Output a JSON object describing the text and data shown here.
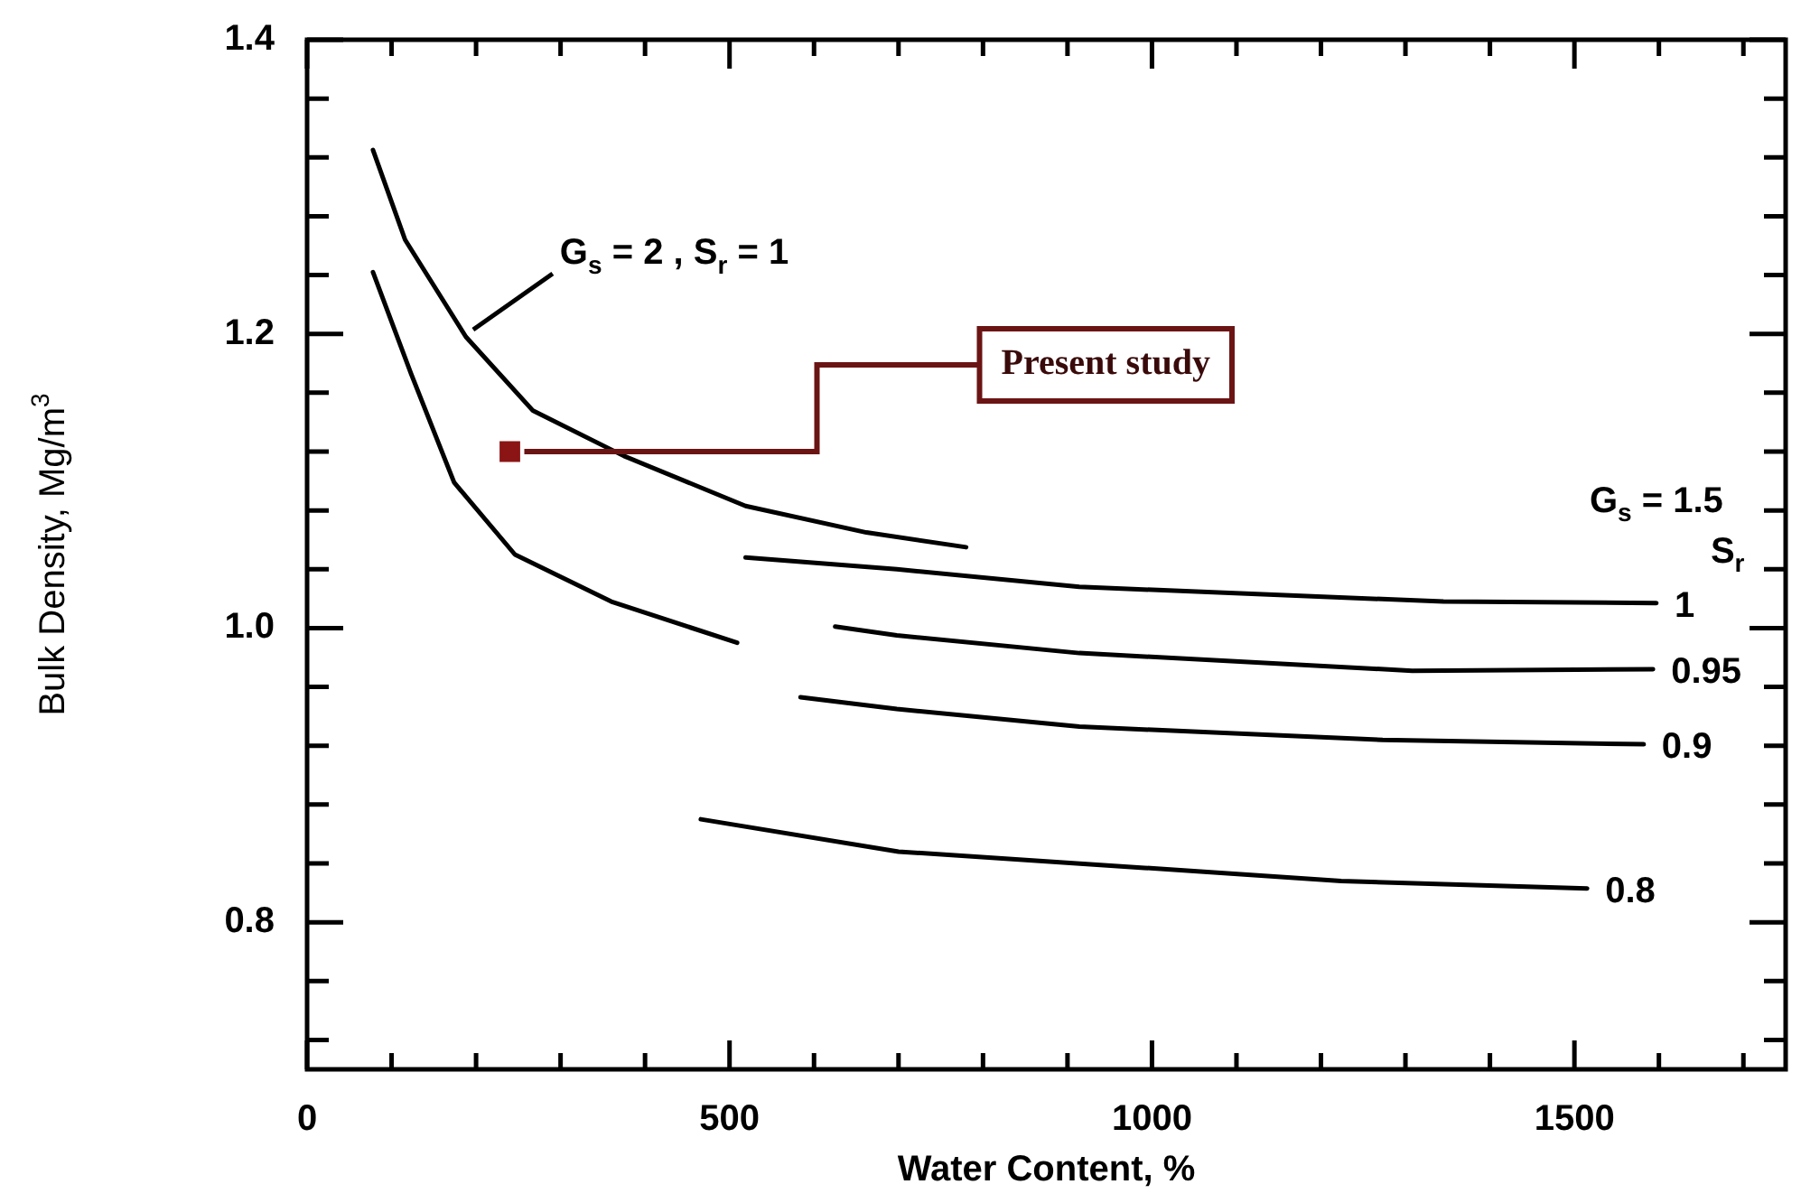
{
  "chart_data": {
    "type": "line",
    "xlabel": "Water Content, %",
    "ylabel": "Bulk Density, Mg/m$^{3}$",
    "xlim": [
      0,
      1750
    ],
    "ylim": [
      0.7,
      1.4
    ],
    "xticks": [
      0,
      {
        "value": 100,
        "label": null
      },
      {
        "value": 200,
        "label": null
      },
      {
        "value": 300,
        "label": null
      },
      {
        "value": 400,
        "label": null
      },
      500,
      {
        "value": 600,
        "label": null
      },
      {
        "value": 700,
        "label": null
      },
      {
        "value": 800,
        "label": null
      },
      {
        "value": 900,
        "label": null
      },
      1000,
      {
        "value": 1100,
        "label": null
      },
      {
        "value": 1200,
        "label": null
      },
      {
        "value": 1300,
        "label": null
      },
      {
        "value": 1400,
        "label": null
      },
      1500,
      {
        "value": 1600,
        "label": null
      },
      {
        "value": 1700,
        "label": null
      }
    ],
    "yticks": [
      {
        "value": 0.72,
        "label": null
      },
      {
        "value": 0.76,
        "label": null
      },
      {
        "value": 0.8,
        "label": "0.8"
      },
      {
        "value": 0.84,
        "label": null
      },
      {
        "value": 0.88,
        "label": null
      },
      {
        "value": 0.92,
        "label": null
      },
      {
        "value": 0.96,
        "label": null
      },
      {
        "value": 1.0,
        "label": "1.0"
      },
      {
        "value": 1.04,
        "label": null
      },
      {
        "value": 1.08,
        "label": null
      },
      {
        "value": 1.12,
        "label": null
      },
      {
        "value": 1.16,
        "label": null
      },
      {
        "value": 1.2,
        "label": "1.2"
      },
      {
        "value": 1.24,
        "label": null
      },
      {
        "value": 1.28,
        "label": null
      },
      {
        "value": 1.32,
        "label": null
      },
      {
        "value": 1.36,
        "label": null
      },
      {
        "value": 1.4,
        "label": "1.4"
      }
    ],
    "grid": false,
    "legend": "right",
    "marker": "none",
    "line_style": "solid",
    "series": [
      {
        "color": "#000000",
        "x": [
          78,
          116,
          188,
          267,
          375,
          519,
          662,
          780
        ],
        "values": [
          1.325,
          1.264,
          1.198,
          1.148,
          1.117,
          1.083,
          1.065,
          1.055
        ]
      },
      {
        "color": "#000000",
        "x": [
          78,
          123,
          174,
          246,
          360,
          509
        ],
        "values": [
          1.242,
          1.173,
          1.099,
          1.05,
          1.018,
          0.99
        ]
      },
      {
        "name": "1",
        "color": "#000000",
        "x": [
          519,
          698,
          914,
          1345,
          1597
        ],
        "values": [
          1.048,
          1.04,
          1.028,
          1.018,
          1.017
        ]
      },
      {
        "name": "0.95",
        "color": "#000000",
        "x": [
          625,
          698,
          914,
          1308,
          1593
        ],
        "values": [
          1.001,
          0.995,
          0.983,
          0.971,
          0.972
        ]
      },
      {
        "name": "0.9",
        "color": "#000000",
        "x": [
          584,
          698,
          914,
          1273,
          1582
        ],
        "values": [
          0.953,
          0.945,
          0.933,
          0.924,
          0.921
        ]
      },
      {
        "name": "0.8",
        "color": "#000000",
        "x": [
          466,
          700,
          991,
          1224,
          1515
        ],
        "values": [
          0.87,
          0.848,
          0.837,
          0.828,
          0.823
        ]
      },
      {
        "type": "scatter",
        "color": "#8b1414",
        "marker": "square",
        "x": [
          240
        ],
        "values": [
          1.12
        ]
      }
    ],
    "annotations": [
      {
        "text": "G$_{s}$ = 2 , S$_{r}$ = 1",
        "x": 188,
        "y": 1.198
      },
      {
        "text": "Present study",
        "x": 240,
        "y": 1.12
      },
      "G$_{s}$ = 1.5",
      "S$_{r}$"
    ]
  }
}
